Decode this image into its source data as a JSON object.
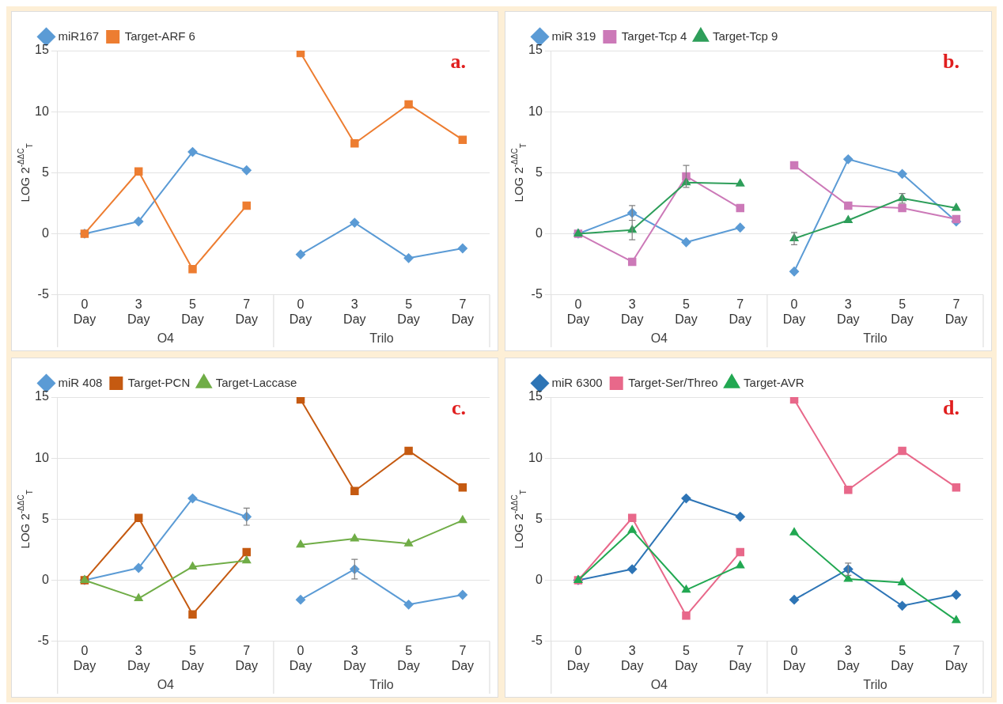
{
  "chart_data": [
    {
      "type": "line",
      "title": "a.",
      "ylabel": "LOG 2$^{-ΔΔC}$$_{T}$",
      "categories": [
        "0 Day",
        "3 Day",
        "5 Day",
        "7 Day",
        "0 Day",
        "3 Day",
        "5 Day",
        "7 Day"
      ],
      "annotations": [
        "O4",
        "Trilo"
      ],
      "ylim": [
        -5,
        15
      ],
      "yticks": [
        -5,
        0,
        5,
        10,
        15
      ],
      "grid": "y",
      "legend": "top left",
      "series": [
        {
          "name": "miR167",
          "color": "#5b9bd5",
          "marker": "diamond",
          "values": [
            0,
            1.0,
            6.7,
            5.2,
            -1.7,
            0.9,
            -2.0,
            -1.2
          ]
        },
        {
          "name": "Target-ARF 6",
          "color": "#ed7d31",
          "marker": "square",
          "values": [
            0,
            5.1,
            -2.9,
            2.3,
            14.8,
            7.4,
            10.6,
            7.7
          ]
        }
      ]
    },
    {
      "type": "line",
      "title": "b.",
      "ylabel": "LOG 2$^{-ΔΔC}$$_{T}$",
      "categories": [
        "0 Day",
        "3 Day",
        "5 Day",
        "7 Day",
        "0 Day",
        "3 Day",
        "5 Day",
        "7 Day"
      ],
      "annotations": [
        "O4",
        "Trilo"
      ],
      "ylim": [
        -5,
        15
      ],
      "yticks": [
        -5,
        0,
        5,
        10,
        15
      ],
      "grid": "y",
      "legend": "top left",
      "series": [
        {
          "name": "miR 319",
          "color": "#5b9bd5",
          "marker": "diamond",
          "values": [
            0,
            1.7,
            -0.7,
            0.5,
            -3.1,
            6.1,
            4.9,
            1.0
          ],
          "errors": [
            null,
            0.6,
            null,
            null,
            null,
            null,
            null,
            null
          ]
        },
        {
          "name": "Target-Tcp 4",
          "color": "#cc79b8",
          "marker": "square",
          "values": [
            0,
            -2.3,
            4.7,
            2.1,
            5.6,
            2.3,
            2.1,
            1.2
          ],
          "errors": [
            null,
            null,
            0.9,
            null,
            null,
            null,
            null,
            null
          ]
        },
        {
          "name": "Target-Tcp 9",
          "color": "#2e9e5a",
          "marker": "triangle",
          "values": [
            0,
            0.3,
            4.2,
            4.1,
            -0.4,
            1.1,
            2.9,
            2.1
          ],
          "errors": [
            null,
            0.8,
            null,
            null,
            0.5,
            null,
            0.4,
            null
          ]
        }
      ]
    },
    {
      "type": "line",
      "title": "c.",
      "ylabel": "LOG 2$^{-ΔΔC}$$_{T}$",
      "categories": [
        "0 Day",
        "3 Day",
        "5 Day",
        "7 Day",
        "0 Day",
        "3 Day",
        "5 Day",
        "7 Day"
      ],
      "annotations": [
        "O4",
        "Trilo"
      ],
      "ylim": [
        -5,
        15
      ],
      "yticks": [
        -5,
        0,
        5,
        10,
        15
      ],
      "grid": "y",
      "legend": "top left",
      "series": [
        {
          "name": "miR 408",
          "color": "#5b9bd5",
          "marker": "diamond",
          "values": [
            0,
            1.0,
            6.7,
            5.2,
            -1.6,
            0.9,
            -2.0,
            -1.2
          ],
          "errors": [
            null,
            null,
            null,
            0.7,
            null,
            0.8,
            null,
            null
          ]
        },
        {
          "name": "Target-PCN",
          "color": "#c55a11",
          "marker": "square",
          "values": [
            0,
            5.1,
            -2.8,
            2.3,
            14.8,
            7.3,
            10.6,
            7.6
          ]
        },
        {
          "name": "Target-Laccase",
          "color": "#70ad47",
          "marker": "triangle",
          "values": [
            0,
            -1.5,
            1.1,
            1.6,
            2.9,
            3.4,
            3.0,
            4.9
          ]
        }
      ]
    },
    {
      "type": "line",
      "title": "d.",
      "ylabel": "LOG 2$^{-ΔΔC}$$_{T}$",
      "categories": [
        "0 Day",
        "3 Day",
        "5 Day",
        "7 Day",
        "0 Day",
        "3 Day",
        "5 Day",
        "7 Day"
      ],
      "annotations": [
        "O4",
        "Trilo"
      ],
      "ylim": [
        -5,
        15
      ],
      "yticks": [
        -5,
        0,
        5,
        10,
        15
      ],
      "grid": "y",
      "legend": "top left",
      "series": [
        {
          "name": "miR 6300",
          "color": "#2e75b6",
          "marker": "diamond",
          "values": [
            0,
            0.9,
            6.7,
            5.2,
            -1.6,
            0.9,
            -2.1,
            -1.2
          ],
          "errors": [
            null,
            null,
            null,
            null,
            null,
            0.5,
            null,
            null
          ]
        },
        {
          "name": "Target-Ser/Threo",
          "color": "#e8688a",
          "marker": "square",
          "values": [
            0,
            5.1,
            -2.9,
            2.3,
            14.8,
            7.4,
            10.6,
            7.6
          ]
        },
        {
          "name": "Target-AVR",
          "color": "#22a852",
          "marker": "triangle",
          "values": [
            0,
            4.1,
            -0.8,
            1.2,
            3.9,
            0.1,
            -0.2,
            -3.3
          ]
        }
      ]
    }
  ]
}
